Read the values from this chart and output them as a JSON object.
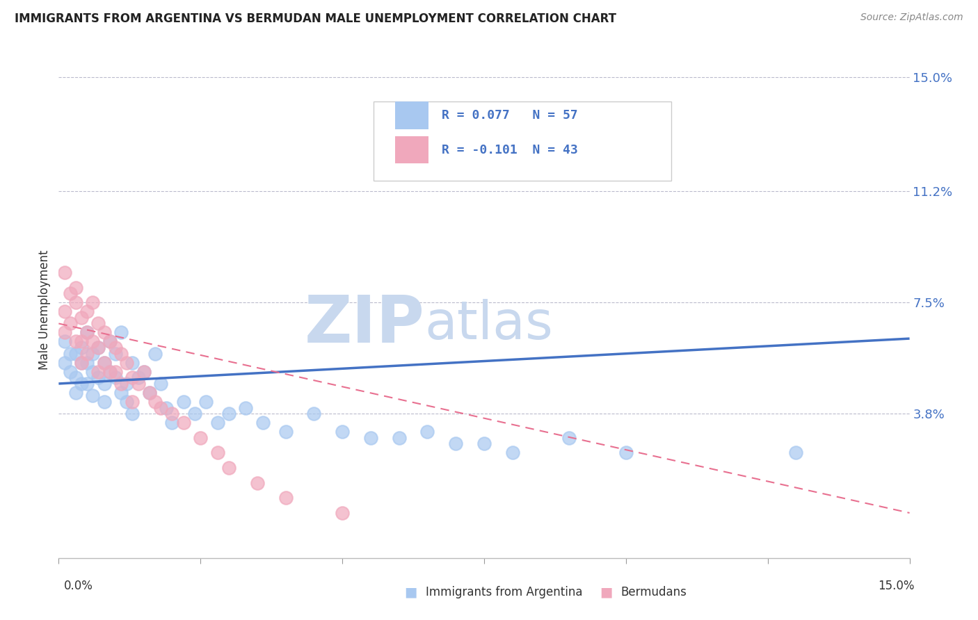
{
  "title": "IMMIGRANTS FROM ARGENTINA VS BERMUDAN MALE UNEMPLOYMENT CORRELATION CHART",
  "source": "Source: ZipAtlas.com",
  "ylabel": "Male Unemployment",
  "xmin": 0.0,
  "xmax": 0.15,
  "ymin": -0.01,
  "ymax": 0.155,
  "yticks": [
    0.038,
    0.075,
    0.112,
    0.15
  ],
  "ytick_labels": [
    "3.8%",
    "7.5%",
    "11.2%",
    "15.0%"
  ],
  "color_blue": "#A8C8F0",
  "color_pink": "#F0A8BC",
  "color_blue_line": "#4472C4",
  "color_pink_line": "#E87090",
  "watermark_zip": "ZIP",
  "watermark_atlas": "atlas",
  "watermark_color": "#C8D8EE",
  "legend_line1": "R = 0.077   N = 57",
  "legend_line2": "R = -0.101  N = 43",
  "blue_scatter_x": [
    0.001,
    0.001,
    0.002,
    0.002,
    0.003,
    0.003,
    0.003,
    0.004,
    0.004,
    0.004,
    0.005,
    0.005,
    0.005,
    0.006,
    0.006,
    0.006,
    0.007,
    0.007,
    0.008,
    0.008,
    0.008,
    0.009,
    0.009,
    0.01,
    0.01,
    0.011,
    0.011,
    0.012,
    0.012,
    0.013,
    0.013,
    0.014,
    0.015,
    0.016,
    0.017,
    0.018,
    0.019,
    0.02,
    0.022,
    0.024,
    0.026,
    0.028,
    0.03,
    0.033,
    0.036,
    0.04,
    0.045,
    0.05,
    0.055,
    0.06,
    0.065,
    0.07,
    0.075,
    0.08,
    0.09,
    0.1,
    0.13
  ],
  "blue_scatter_y": [
    0.062,
    0.055,
    0.058,
    0.052,
    0.058,
    0.05,
    0.045,
    0.055,
    0.06,
    0.048,
    0.055,
    0.065,
    0.048,
    0.058,
    0.052,
    0.044,
    0.06,
    0.05,
    0.055,
    0.048,
    0.042,
    0.062,
    0.052,
    0.05,
    0.058,
    0.065,
    0.045,
    0.048,
    0.042,
    0.055,
    0.038,
    0.05,
    0.052,
    0.045,
    0.058,
    0.048,
    0.04,
    0.035,
    0.042,
    0.038,
    0.042,
    0.035,
    0.038,
    0.04,
    0.035,
    0.032,
    0.038,
    0.032,
    0.03,
    0.03,
    0.032,
    0.028,
    0.028,
    0.025,
    0.03,
    0.025,
    0.025
  ],
  "pink_scatter_x": [
    0.001,
    0.001,
    0.001,
    0.002,
    0.002,
    0.003,
    0.003,
    0.003,
    0.004,
    0.004,
    0.004,
    0.005,
    0.005,
    0.005,
    0.006,
    0.006,
    0.007,
    0.007,
    0.007,
    0.008,
    0.008,
    0.009,
    0.009,
    0.01,
    0.01,
    0.011,
    0.011,
    0.012,
    0.013,
    0.013,
    0.014,
    0.015,
    0.016,
    0.017,
    0.018,
    0.02,
    0.022,
    0.025,
    0.028,
    0.03,
    0.035,
    0.04,
    0.05
  ],
  "pink_scatter_y": [
    0.085,
    0.072,
    0.065,
    0.078,
    0.068,
    0.075,
    0.08,
    0.062,
    0.07,
    0.062,
    0.055,
    0.072,
    0.065,
    0.058,
    0.075,
    0.062,
    0.068,
    0.06,
    0.052,
    0.065,
    0.055,
    0.062,
    0.052,
    0.06,
    0.052,
    0.058,
    0.048,
    0.055,
    0.05,
    0.042,
    0.048,
    0.052,
    0.045,
    0.042,
    0.04,
    0.038,
    0.035,
    0.03,
    0.025,
    0.02,
    0.015,
    0.01,
    0.005
  ],
  "blue_trend_x": [
    0.0,
    0.15
  ],
  "blue_trend_y": [
    0.048,
    0.063
  ],
  "pink_trend_x": [
    0.0,
    0.15
  ],
  "pink_trend_y": [
    0.068,
    0.005
  ]
}
